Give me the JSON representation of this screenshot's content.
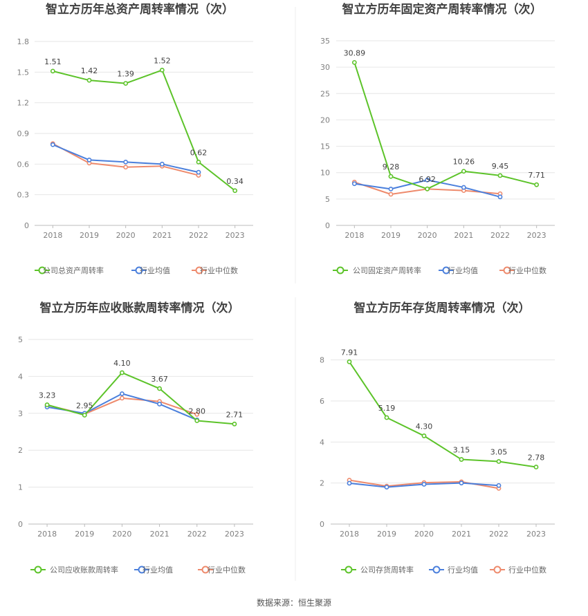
{
  "page": {
    "source_label": "数据来源：恒生聚源"
  },
  "colors": {
    "company": "#5cc329",
    "industry_avg": "#4a7fdc",
    "industry_median": "#ee8a6c",
    "grid": "#e6e6e6",
    "divider": "#eeeeee"
  },
  "chart_data": [
    {
      "type": "line",
      "title": "智立方历年总资产周转率情况（次）",
      "categories": [
        "2018",
        "2019",
        "2020",
        "2021",
        "2022",
        "2023"
      ],
      "ylim": [
        0,
        1.8
      ],
      "yticks": [
        "0",
        "0.3",
        "0.6",
        "0.9",
        "1.2",
        "1.5",
        "1.8"
      ],
      "series": [
        {
          "name": "公司总资产周转率",
          "role": "company",
          "values": [
            1.51,
            1.42,
            1.39,
            1.52,
            0.62,
            0.34
          ],
          "labels": [
            "1.51",
            "1.42",
            "1.39",
            "1.52",
            "0.62",
            "0.34"
          ]
        },
        {
          "name": "行业均值",
          "role": "industry_avg",
          "values": [
            0.79,
            0.64,
            0.62,
            0.6,
            0.52,
            null
          ]
        },
        {
          "name": "行业中位数",
          "role": "industry_median",
          "values": [
            0.8,
            0.61,
            0.57,
            0.58,
            0.49,
            null
          ]
        }
      ]
    },
    {
      "type": "line",
      "title": "智立方历年固定资产周转率情况（次）",
      "categories": [
        "2018",
        "2019",
        "2020",
        "2021",
        "2022",
        "2023"
      ],
      "ylim": [
        0,
        35
      ],
      "yticks": [
        "0",
        "5",
        "10",
        "15",
        "20",
        "25",
        "30",
        "35"
      ],
      "series": [
        {
          "name": "公司固定资产周转率",
          "role": "company",
          "values": [
            30.89,
            9.28,
            6.92,
            10.26,
            9.45,
            7.71
          ],
          "labels": [
            "30.89",
            "9.28",
            "6.92",
            "10.26",
            "9.45",
            "7.71"
          ]
        },
        {
          "name": "行业均值",
          "role": "industry_avg",
          "values": [
            7.9,
            6.9,
            8.6,
            7.2,
            5.4,
            null
          ]
        },
        {
          "name": "行业中位数",
          "role": "industry_median",
          "values": [
            8.2,
            5.9,
            6.9,
            6.6,
            6.0,
            null
          ]
        }
      ]
    },
    {
      "type": "line",
      "title": "智立方历年应收账款周转率情况（次）",
      "categories": [
        "2018",
        "2019",
        "2020",
        "2021",
        "2022",
        "2023"
      ],
      "ylim": [
        0,
        5
      ],
      "yticks": [
        "0",
        "1",
        "2",
        "3",
        "4",
        "5"
      ],
      "series": [
        {
          "name": "公司应收账款周转率",
          "role": "company",
          "values": [
            3.23,
            2.95,
            4.1,
            3.67,
            2.8,
            2.71
          ],
          "labels": [
            "3.23",
            "2.95",
            "4.10",
            "3.67",
            "2.80",
            "2.71"
          ]
        },
        {
          "name": "行业均值",
          "role": "industry_avg",
          "values": [
            3.17,
            3.0,
            3.53,
            3.25,
            2.82,
            null
          ]
        },
        {
          "name": "行业中位数",
          "role": "industry_median",
          "values": [
            3.22,
            2.98,
            3.41,
            3.32,
            2.97,
            null
          ]
        }
      ]
    },
    {
      "type": "line",
      "title": "智立方历年存货周转率情况（次）",
      "categories": [
        "2018",
        "2019",
        "2020",
        "2021",
        "2022",
        "2023"
      ],
      "ylim": [
        0,
        9
      ],
      "yticks": [
        "0",
        "2",
        "4",
        "6",
        "8"
      ],
      "series": [
        {
          "name": "公司存货周转率",
          "role": "company",
          "values": [
            7.91,
            5.19,
            4.3,
            3.15,
            3.05,
            2.78
          ],
          "labels": [
            "7.91",
            "5.19",
            "4.30",
            "3.15",
            "3.05",
            "2.78"
          ]
        },
        {
          "name": "行业均值",
          "role": "industry_avg",
          "values": [
            1.99,
            1.8,
            1.94,
            2.0,
            1.88,
            null
          ]
        },
        {
          "name": "行业中位数",
          "role": "industry_median",
          "values": [
            2.14,
            1.85,
            2.02,
            2.06,
            1.74,
            null
          ]
        }
      ]
    }
  ]
}
